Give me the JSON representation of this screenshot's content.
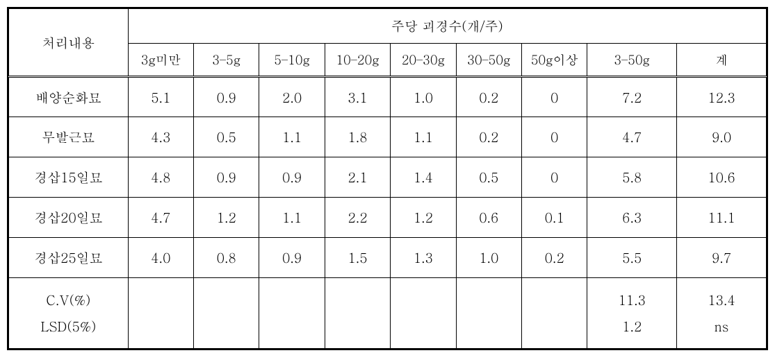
{
  "table": {
    "header": {
      "rowLabel": "처리내용",
      "groupLabel": "주당 괴경수(개/주)",
      "columns": [
        "3g미만",
        "3–5g",
        "5–10g",
        "10–20g",
        "20–30g",
        "30–50g",
        "50g이상",
        "3–50g",
        "계"
      ]
    },
    "rows": [
      {
        "label": "배양순화묘",
        "cells": [
          "5.1",
          "0.9",
          "2.0",
          "3.1",
          "1.0",
          "0.2",
          "0",
          "7.2",
          "12.3"
        ]
      },
      {
        "label": "무발근묘",
        "cells": [
          "4.3",
          "0.5",
          "1.1",
          "1.8",
          "1.1",
          "0.2",
          "0",
          "4.7",
          "9.0"
        ]
      },
      {
        "label": "경삽15일묘",
        "cells": [
          "4.8",
          "0.9",
          "0.9",
          "2.1",
          "1.4",
          "0.5",
          "0",
          "5.8",
          "10.6"
        ]
      },
      {
        "label": "경삽20일묘",
        "cells": [
          "4.7",
          "1.2",
          "1.1",
          "2.2",
          "1.2",
          "0.6",
          "0.1",
          "6.3",
          "11.1"
        ]
      },
      {
        "label": "경삽25일묘",
        "cells": [
          "4.0",
          "0.8",
          "0.9",
          "1.5",
          "1.3",
          "1.0",
          "0.2",
          "5.5",
          "9.7"
        ]
      }
    ],
    "stats": {
      "labelCV": "C.V(%)",
      "labelLSD": "LSD(5%)",
      "col8_cv": "11.3",
      "col8_lsd": "1.2",
      "col9_cv": "13.4",
      "col9_lsd": "ns"
    }
  }
}
